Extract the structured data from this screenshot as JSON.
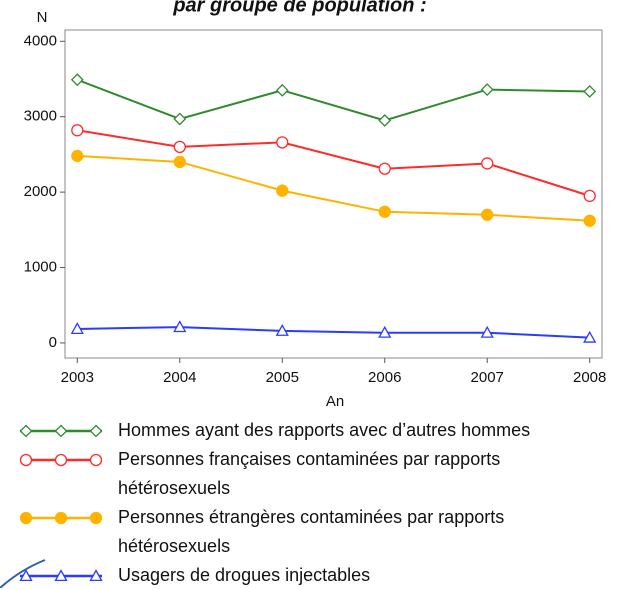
{
  "chart_data": {
    "type": "line",
    "title": "par groupe de population :",
    "ylabel": "N",
    "xlabel": "An",
    "x": [
      2003,
      2004,
      2005,
      2006,
      2007,
      2008
    ],
    "xlim": [
      2002.88,
      2008.12
    ],
    "xticks": [
      2003,
      2004,
      2005,
      2006,
      2007,
      2008
    ],
    "ylim": [
      -200,
      4150
    ],
    "yticks": [
      0,
      1000,
      2000,
      3000,
      4000
    ],
    "series": [
      {
        "name": "Hommes ayant des rapports avec d’autres hommes",
        "color": "#2e8b2e",
        "marker": "diamond",
        "values": [
          3490,
          2970,
          3350,
          2950,
          3360,
          3335
        ]
      },
      {
        "name": "Personnes françaises contaminées par rapports hétérosexuels",
        "color": "#ff2a2a",
        "marker": "circle",
        "values": [
          2820,
          2600,
          2660,
          2310,
          2380,
          1950
        ]
      },
      {
        "name": "Personnes étrangères contaminées par rapports hétérosexuels",
        "color": "#ffb300",
        "marker": "filled-circle",
        "values": [
          2480,
          2400,
          2020,
          1740,
          1700,
          1620
        ]
      },
      {
        "name": "Usagers de drogues injectables",
        "color": "#2a3cff",
        "marker": "triangle",
        "values": [
          185,
          210,
          160,
          135,
          135,
          70
        ]
      }
    ]
  }
}
